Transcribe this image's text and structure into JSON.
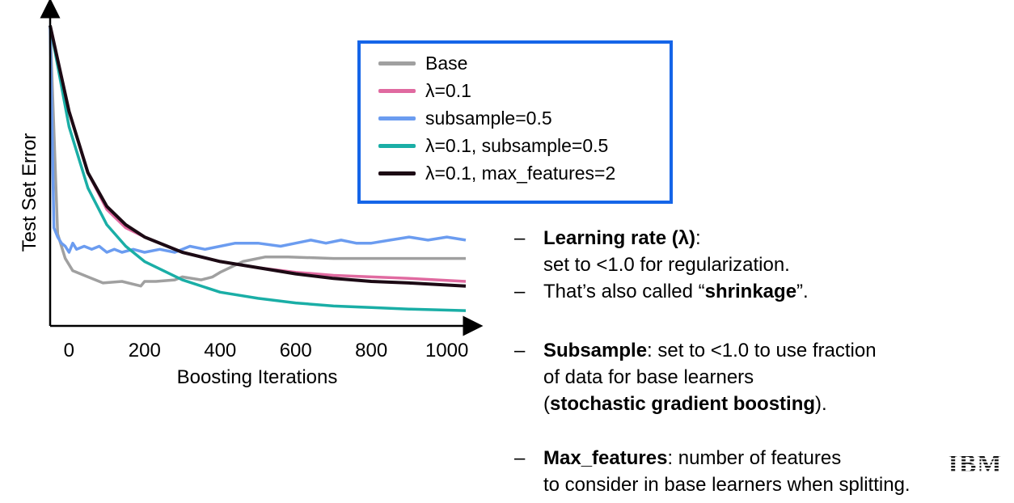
{
  "chart_data": {
    "type": "line",
    "xlabel": "Boosting Iterations",
    "ylabel": "Test Set Error",
    "x_ticks": [
      0,
      200,
      400,
      600,
      800,
      1000
    ],
    "xlim": [
      -50,
      1050
    ],
    "ylim": [
      0,
      1
    ],
    "y_ticks_shown": false,
    "grid": false,
    "legend_position": "top-center",
    "series": [
      {
        "name": "Base",
        "color": "#a0a0a0",
        "x": [
          -50,
          -30,
          -10,
          10,
          50,
          90,
          140,
          190,
          200,
          230,
          280,
          300,
          350,
          380,
          400,
          460,
          520,
          580,
          700,
          850,
          1050
        ],
        "y": [
          0.98,
          0.3,
          0.22,
          0.18,
          0.16,
          0.14,
          0.145,
          0.13,
          0.145,
          0.145,
          0.15,
          0.16,
          0.15,
          0.16,
          0.175,
          0.21,
          0.225,
          0.225,
          0.22,
          0.22,
          0.22
        ]
      },
      {
        "name": "λ=0.1",
        "color": "#e06aa0",
        "x": [
          -50,
          0,
          50,
          100,
          150,
          200,
          300,
          400,
          500,
          600,
          700,
          800,
          900,
          1050
        ],
        "y": [
          0.98,
          0.7,
          0.5,
          0.38,
          0.32,
          0.29,
          0.24,
          0.21,
          0.19,
          0.175,
          0.165,
          0.16,
          0.155,
          0.145
        ]
      },
      {
        "name": "subsample=0.5",
        "color": "#6b9cf0",
        "x": [
          -50,
          -40,
          -30,
          -20,
          -10,
          0,
          10,
          20,
          40,
          60,
          80,
          100,
          120,
          140,
          170,
          200,
          240,
          280,
          320,
          360,
          400,
          440,
          500,
          560,
          600,
          640,
          680,
          720,
          760,
          800,
          850,
          900,
          950,
          1000,
          1050
        ],
        "y": [
          0.98,
          0.32,
          0.29,
          0.27,
          0.26,
          0.24,
          0.27,
          0.25,
          0.26,
          0.25,
          0.26,
          0.24,
          0.25,
          0.24,
          0.25,
          0.24,
          0.25,
          0.24,
          0.26,
          0.25,
          0.26,
          0.27,
          0.27,
          0.26,
          0.27,
          0.28,
          0.27,
          0.28,
          0.27,
          0.27,
          0.28,
          0.29,
          0.28,
          0.29,
          0.28
        ]
      },
      {
        "name": "λ=0.1, subsample=0.5",
        "color": "#1aaea6",
        "x": [
          -50,
          0,
          50,
          100,
          150,
          200,
          300,
          400,
          500,
          600,
          700,
          800,
          900,
          1050
        ],
        "y": [
          0.98,
          0.65,
          0.45,
          0.33,
          0.26,
          0.21,
          0.15,
          0.11,
          0.09,
          0.075,
          0.065,
          0.06,
          0.055,
          0.05
        ]
      },
      {
        "name": "λ=0.1, max_features=2",
        "color": "#1c0a14",
        "x": [
          -50,
          0,
          50,
          100,
          150,
          200,
          300,
          400,
          500,
          600,
          700,
          800,
          900,
          1050
        ],
        "y": [
          0.98,
          0.7,
          0.5,
          0.39,
          0.33,
          0.29,
          0.24,
          0.21,
          0.19,
          0.17,
          0.155,
          0.145,
          0.14,
          0.13
        ]
      }
    ]
  },
  "bullets": [
    {
      "dash": "–",
      "bold": "Learning rate (λ)",
      "rest": ":",
      "line2": "set to <1.0 for regularization."
    },
    {
      "dash": "–",
      "pre": "That’s also called “",
      "bold": "shrinkage",
      "post": "”."
    },
    {
      "dash": "–",
      "bold": "Subsample",
      "rest": ": set to <1.0 to use fraction",
      "line2": "of data for base learners",
      "line3_pre": "(",
      "line3_bold": "stochastic gradient boosting",
      "line3_post": ")."
    },
    {
      "dash": "–",
      "bold": "Max_features",
      "rest": ": number of features",
      "line2": "to consider in base learners when splitting."
    }
  ],
  "logo": {
    "text": "IBM",
    "icon": "ibm-logo"
  }
}
